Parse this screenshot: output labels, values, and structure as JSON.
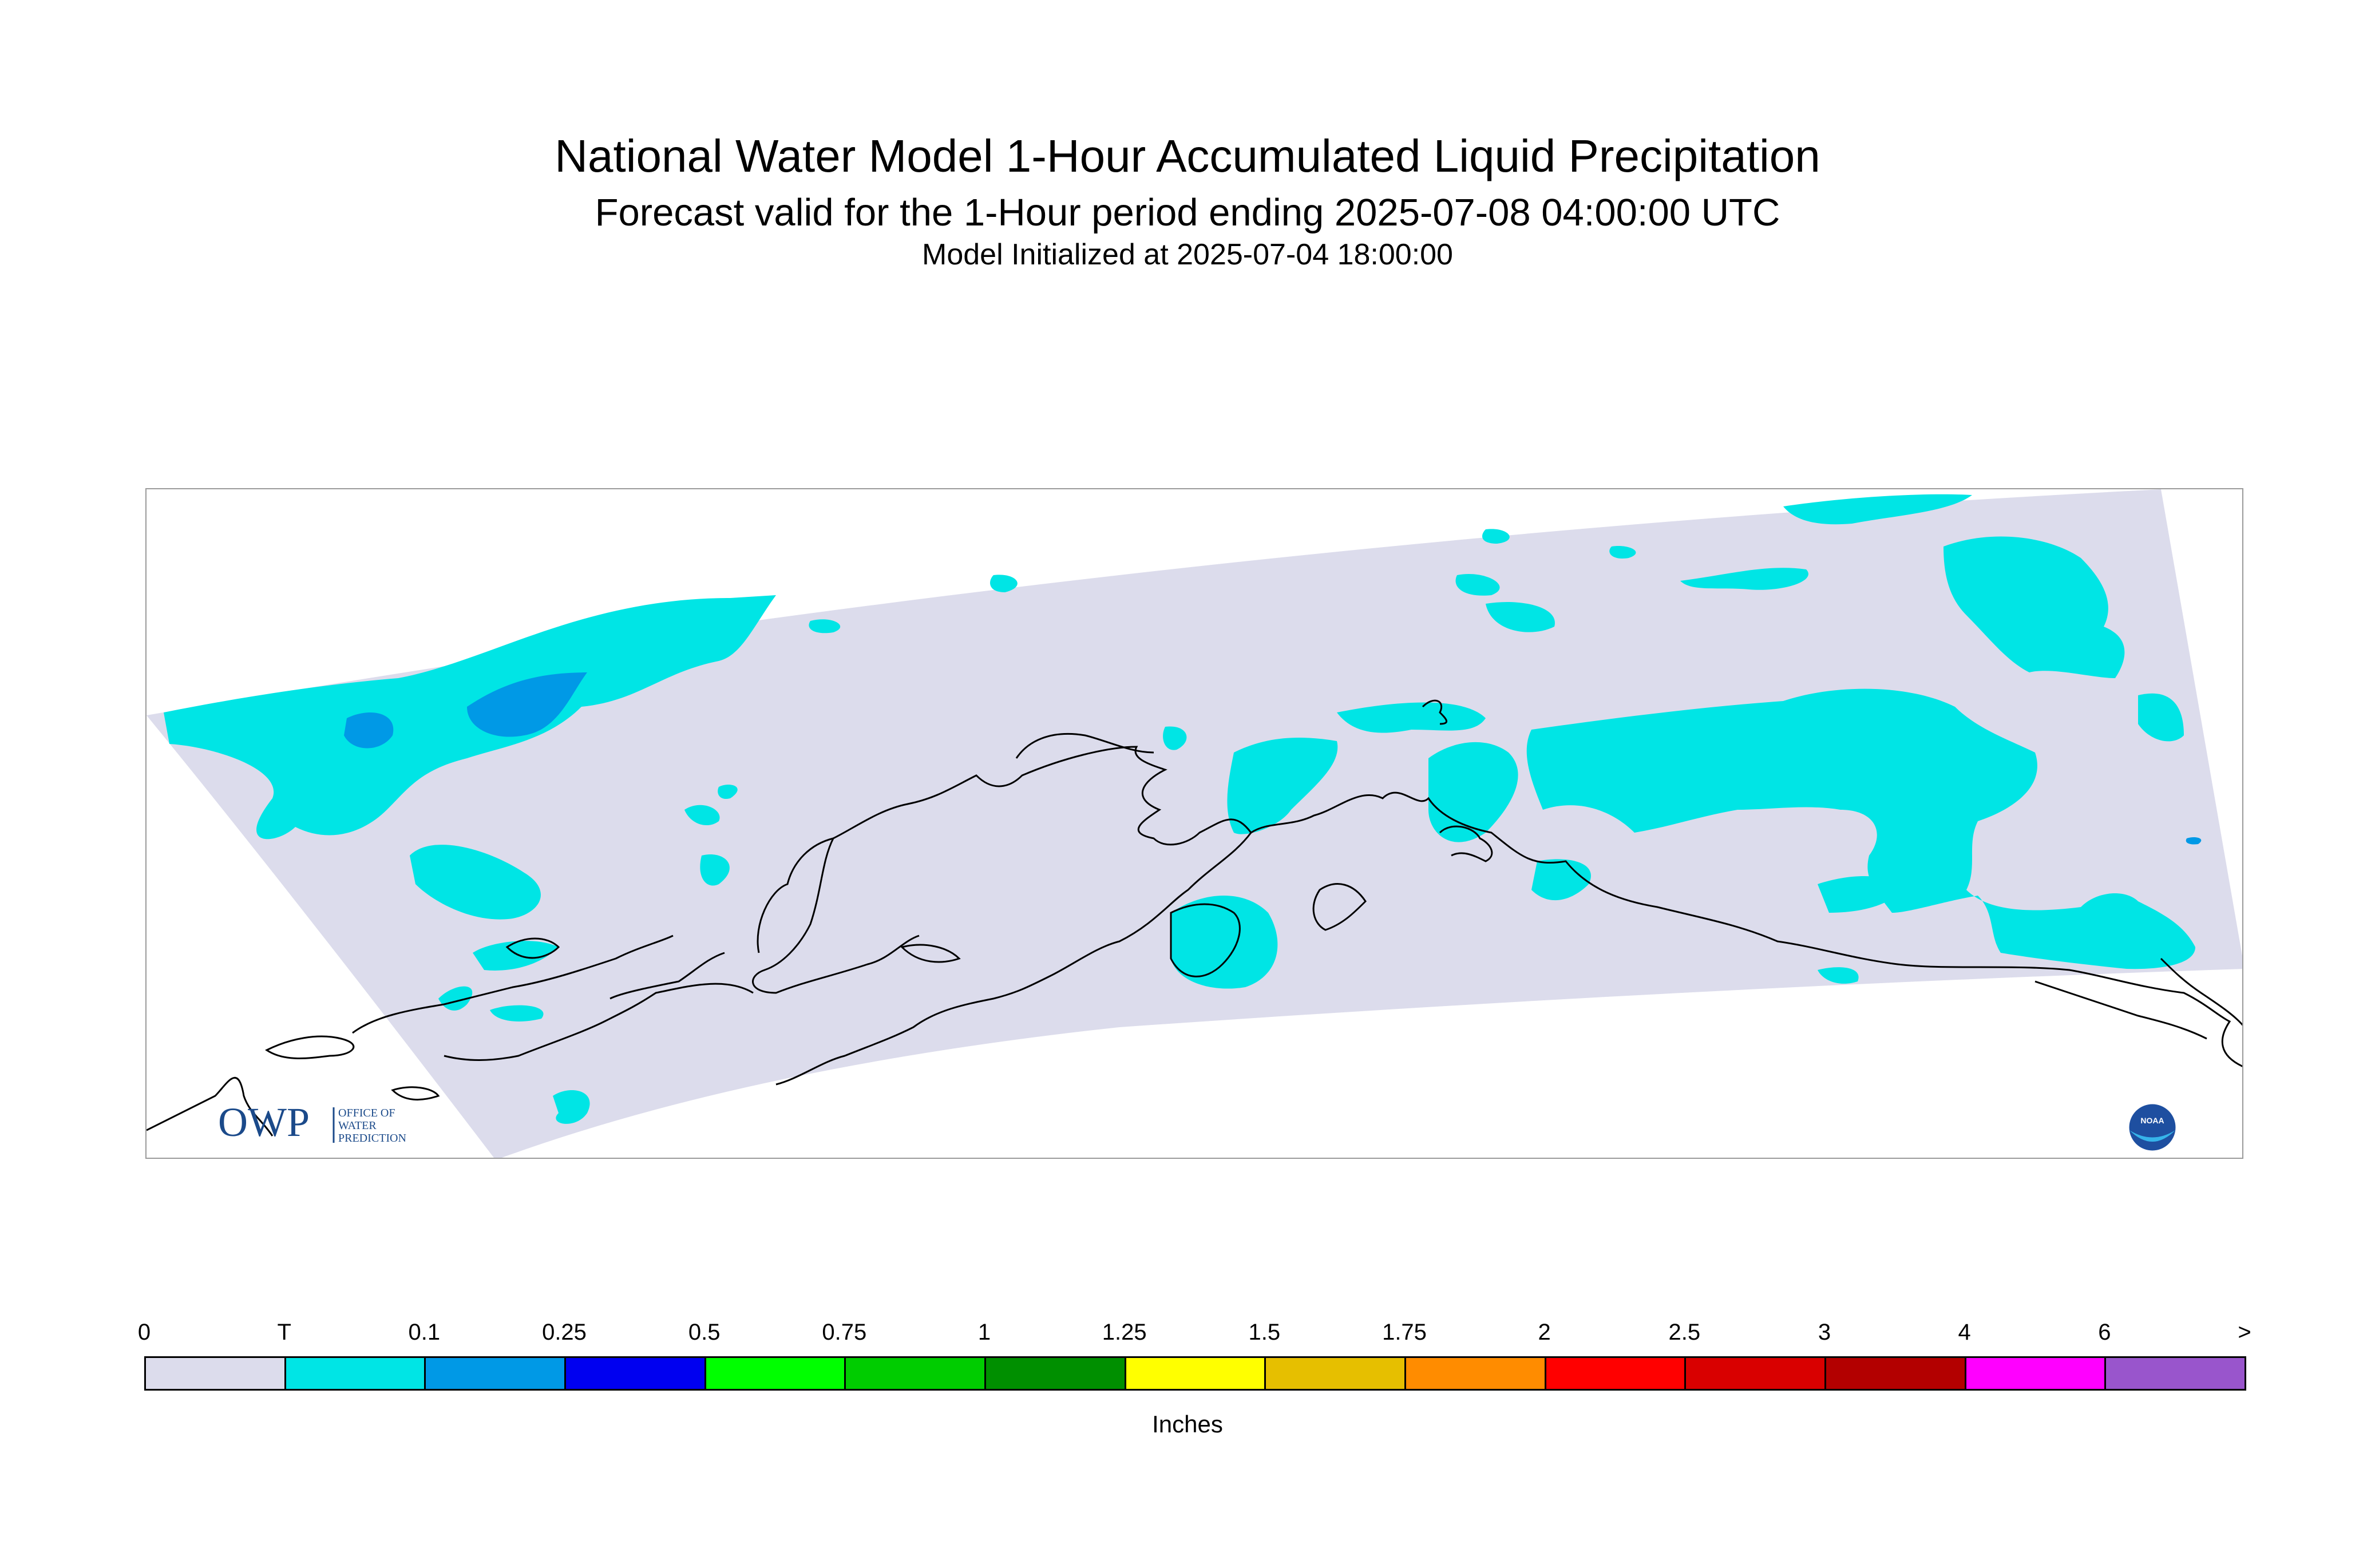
{
  "header": {
    "title": "National Water Model 1-Hour Accumulated Liquid Precipitation",
    "subtitle": "Forecast valid for the 1-Hour period ending 2025-07-08 04:00:00 UTC",
    "init_line": "Model Initialized at 2025-07-04 18:00:00"
  },
  "map": {
    "domain_fill_color": "#dcdcec",
    "region": "Alaska",
    "logos": {
      "owp": {
        "mark": "OWP",
        "text_lines": [
          "OFFICE OF",
          "WATER",
          "PREDICTION"
        ]
      },
      "noaa": {
        "mark": "NOAA"
      }
    }
  },
  "legend": {
    "unit": "Inches",
    "bins": [
      {
        "label": "0",
        "color": "#dcdcec"
      },
      {
        "label": "T",
        "color": "#00e5e5"
      },
      {
        "label": "0.1",
        "color": "#0099e6"
      },
      {
        "label": "0.25",
        "color": "#0000f0"
      },
      {
        "label": "0.5",
        "color": "#00ff00"
      },
      {
        "label": "0.75",
        "color": "#00cc00"
      },
      {
        "label": "1",
        "color": "#008f00"
      },
      {
        "label": "1.25",
        "color": "#ffff00"
      },
      {
        "label": "1.5",
        "color": "#e6bf00"
      },
      {
        "label": "1.75",
        "color": "#ff8c00"
      },
      {
        "label": "2",
        "color": "#ff0000"
      },
      {
        "label": "2.5",
        "color": "#d90000"
      },
      {
        "label": "3",
        "color": "#b30000"
      },
      {
        "label": "4",
        "color": "#ff00ff"
      },
      {
        "label": "6",
        "color": "#9955cc"
      }
    ],
    "end_label": ">"
  }
}
